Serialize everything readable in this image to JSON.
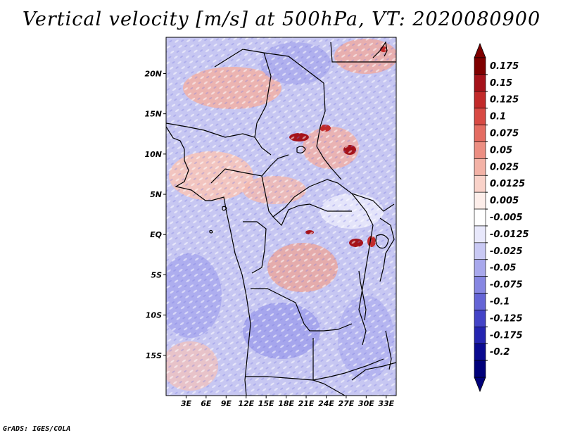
{
  "title": "Vertical velocity [m/s] at 500hPa, VT: 2020080900",
  "footer": "GrADS: IGES/COLA",
  "chart_data": {
    "type": "heatmap",
    "variable": "Vertical velocity",
    "units": "m/s",
    "level": "500hPa",
    "valid_time": "2020080900",
    "lon_range": [
      0,
      34.5
    ],
    "lat_range": [
      -20,
      24.5
    ],
    "x_ticks": [
      "3E",
      "6E",
      "9E",
      "12E",
      "15E",
      "18E",
      "21E",
      "24E",
      "27E",
      "30E",
      "33E"
    ],
    "y_ticks": [
      "20N",
      "15N",
      "10N",
      "5N",
      "EQ",
      "5S",
      "10S",
      "15S"
    ],
    "colorbar": {
      "labels": [
        "0.175",
        "0.15",
        "0.125",
        "0.1",
        "0.075",
        "0.05",
        "0.025",
        "0.0125",
        "0.005",
        "-0.005",
        "-0.0125",
        "-0.025",
        "-0.05",
        "-0.075",
        "-0.1",
        "-0.125",
        "-0.175",
        "-0.2"
      ],
      "colors": [
        "#7f0000",
        "#a5121a",
        "#c22a2a",
        "#d84a44",
        "#e46c62",
        "#ec8e82",
        "#f3b2a6",
        "#f9d2c9",
        "#fdeeea",
        "#ffffff",
        "#e8e8fb",
        "#c9c9f4",
        "#a8a8ec",
        "#8686e2",
        "#6464d6",
        "#4343c7",
        "#2424b0",
        "#0a0a90",
        "#00007a"
      ]
    }
  }
}
